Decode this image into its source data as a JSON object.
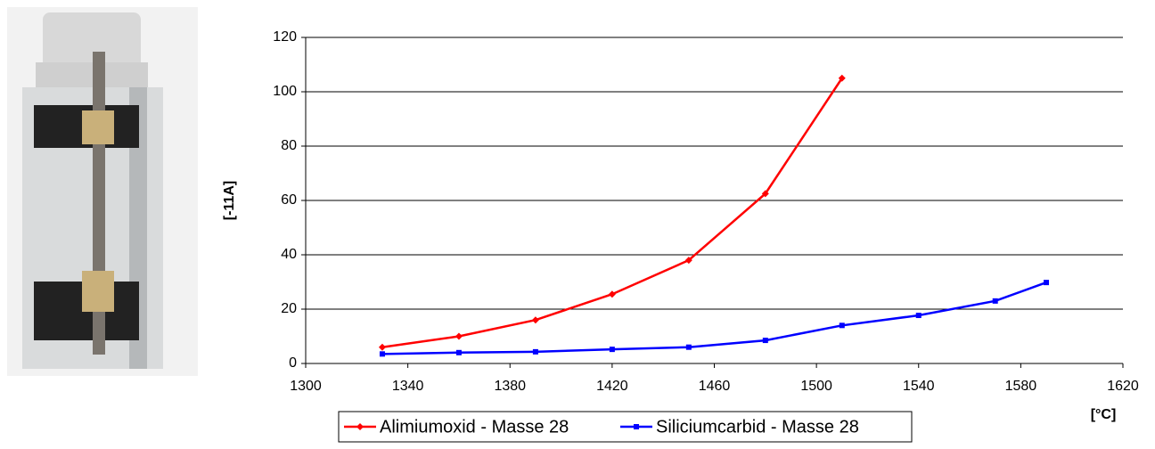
{
  "chart_data": {
    "type": "line",
    "x_label": "[°C]",
    "y_label": "[-11A]",
    "xlim": [
      1300,
      1620
    ],
    "xticks": [
      1300,
      1340,
      1380,
      1420,
      1460,
      1500,
      1540,
      1580,
      1620
    ],
    "ylim": [
      0,
      120
    ],
    "yticks": [
      0,
      20,
      40,
      60,
      80,
      100,
      120
    ],
    "grid": true,
    "series": [
      {
        "name": "Alimiumoxid - Masse 28",
        "color": "#ff0000",
        "marker": "diamond",
        "x": [
          1330,
          1360,
          1390,
          1420,
          1450,
          1480,
          1510
        ],
        "values": [
          6,
          10,
          16,
          25.5,
          38,
          62.5,
          105
        ]
      },
      {
        "name": "Siliciumcarbid - Masse 28",
        "color": "#0000ff",
        "marker": "square",
        "x": [
          1330,
          1360,
          1390,
          1420,
          1450,
          1480,
          1510,
          1540,
          1570,
          1590
        ],
        "values": [
          3.5,
          4,
          4.3,
          5.2,
          6,
          8.5,
          14,
          17.7,
          23,
          29.8
        ]
      }
    ]
  }
}
